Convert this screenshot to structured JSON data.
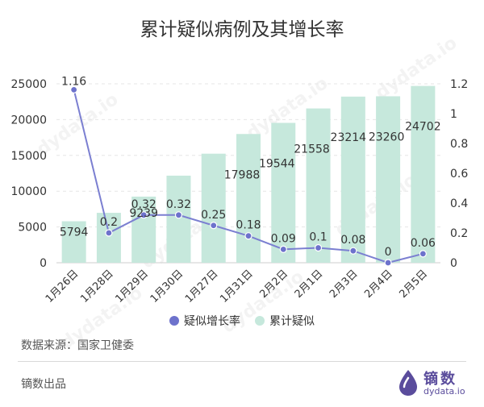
{
  "source": "数据来源：国家卫健委",
  "producer": "镝数出品",
  "brand": {
    "name": "镝数",
    "domain": "dydata.io",
    "color": "#5a4c9c"
  },
  "watermark_text": "dydata.io",
  "colors": {
    "bar": "#c6e8dc",
    "line": "#7b7fd1",
    "point": "#6d72cc"
  },
  "chart_data": {
    "type": "bar",
    "title": "累计疑似病例及其增长率",
    "categories": [
      "1月26日",
      "1月28日",
      "1月29日",
      "1月30日",
      "1月27日",
      "1月31日",
      "2月2日",
      "2月1日",
      "2月3日",
      "2月4日",
      "2月5日"
    ],
    "series": [
      {
        "name": "累计疑似",
        "type": "bar",
        "axis": "left",
        "values": [
          5794,
          6973,
          9239,
          12167,
          15238,
          17988,
          19544,
          21558,
          23214,
          23260,
          24702
        ],
        "labels": [
          "5794",
          "",
          "9239",
          "",
          "",
          "17988",
          "19544",
          "21558",
          "23214",
          "23260",
          "24702"
        ]
      },
      {
        "name": "疑似增长率",
        "type": "line",
        "axis": "right",
        "values": [
          1.16,
          0.2,
          0.32,
          0.32,
          0.25,
          0.18,
          0.09,
          0.1,
          0.08,
          0,
          0.06
        ],
        "labels": [
          "1.16",
          "0.2",
          "0.32",
          "0.32",
          "0.25",
          "0.18",
          "0.09",
          "0.1",
          "0.08",
          "0",
          "0.06"
        ]
      }
    ],
    "y_left": {
      "min": 0,
      "max": 25000,
      "ticks": [
        "0",
        "5000",
        "10000",
        "15000",
        "20000",
        "25000"
      ]
    },
    "y_right": {
      "min": 0,
      "max": 1.2,
      "ticks": [
        "0",
        "0.2",
        "0.4",
        "0.6",
        "0.8",
        "1",
        "1.2"
      ]
    },
    "legend": [
      "疑似增长率",
      "累计疑似"
    ],
    "legend_position": "bottom-center",
    "grid": true
  }
}
